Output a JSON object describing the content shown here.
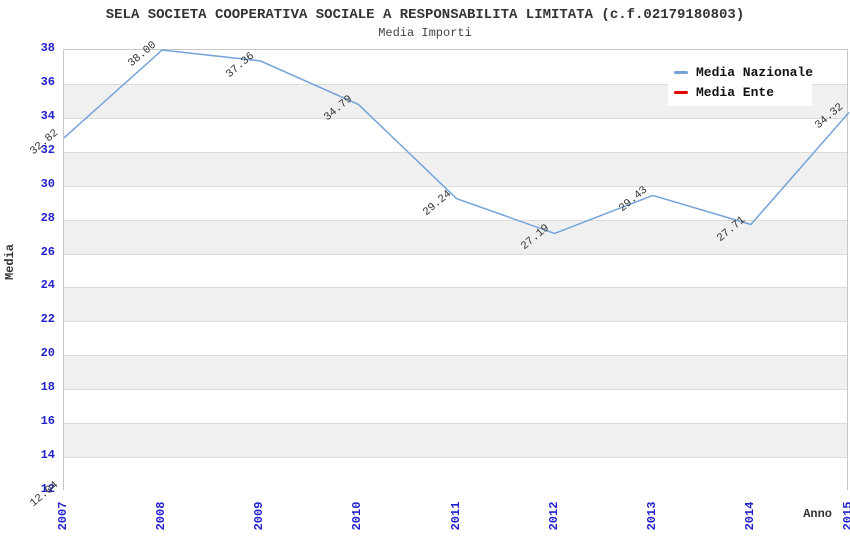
{
  "header": {
    "title": "SELA SOCIETA COOPERATIVA SOCIALE A RESPONSABILITA LIMITATA (c.f.02179180803)",
    "subtitle": "Media Importi"
  },
  "colors": {
    "tick_label": "#2222cc",
    "band_gray": "#f0f0f0",
    "band_white": "#ffffff",
    "plot_border": "#c9c9c9",
    "text_dark": "#333333",
    "media_nazionale": "#76a4d8",
    "media_ente": "#e60000"
  },
  "legend": {
    "position": "top-right",
    "items": [
      {
        "label": "Media Nazionale",
        "color": "#76a4d8"
      },
      {
        "label": "Media Ente",
        "color": "#e60000"
      }
    ]
  },
  "chart_data": {
    "type": "line",
    "title": "SELA SOCIETA COOPERATIVA SOCIALE A RESPONSABILITA LIMITATA (c.f.02179180803)",
    "subtitle": "Media Importi",
    "xlabel": "Anno",
    "ylabel": "Media",
    "xlim": [
      2007,
      2015
    ],
    "ylim": [
      12,
      38
    ],
    "x_ticks": [
      2007,
      2008,
      2009,
      2010,
      2011,
      2012,
      2013,
      2014,
      2015
    ],
    "y_ticks": [
      12,
      14,
      16,
      18,
      20,
      22,
      24,
      26,
      28,
      30,
      32,
      34,
      36,
      38
    ],
    "grid": "horizontal-alternating-bands",
    "legend_position": "top-right",
    "series": [
      {
        "name": "Media Nazionale",
        "color": "#76a4d8",
        "x": [
          2007,
          2008,
          2009,
          2010,
          2011,
          2012,
          2013,
          2014,
          2015
        ],
        "values": [
          32.82,
          38.0,
          37.36,
          34.79,
          29.24,
          27.19,
          29.43,
          27.71,
          34.32
        ],
        "labels": [
          "32.82",
          "38.00",
          "37.36",
          "34.79",
          "29.24",
          "27.19",
          "29.43",
          "27.71",
          "34.32"
        ]
      },
      {
        "name": "Media Ente",
        "color": "#e60000",
        "x": [
          2007
        ],
        "values": [
          12.04
        ],
        "labels": [
          "12.04"
        ]
      }
    ]
  }
}
